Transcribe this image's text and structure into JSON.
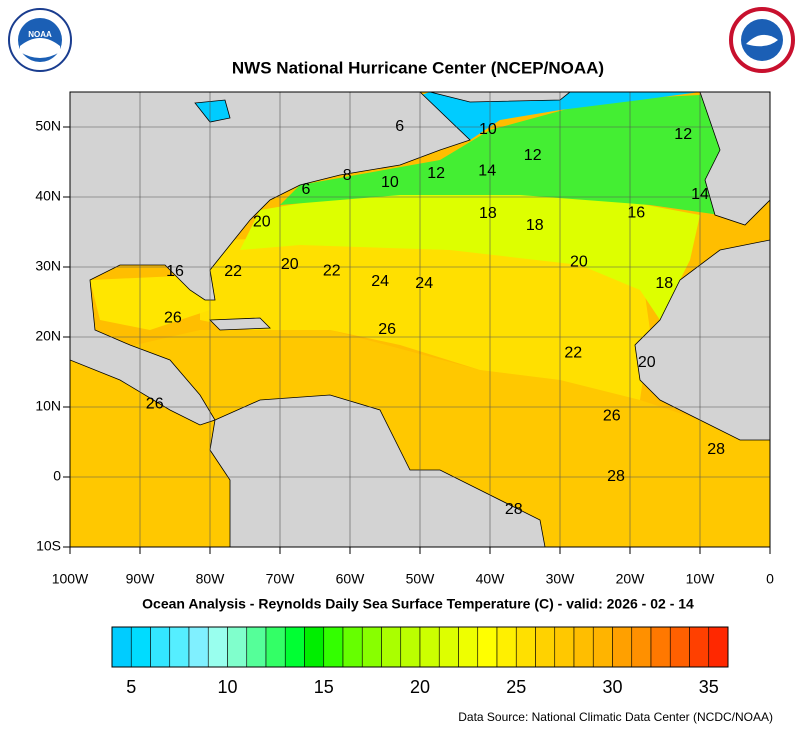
{
  "title": "NWS National Hurricane Center (NCEP/NOAA)",
  "subtitle": "Ocean Analysis - Reynolds Daily Sea Surface Temperature (C) - valid: 2026 - 02 - 14",
  "source": "Data Source: National Climatic Data Center (NCDC/NOAA)",
  "logo_left": "NOAA",
  "map": {
    "xlim": [
      -100,
      0
    ],
    "ylim": [
      -10,
      55
    ],
    "xticks": [
      {
        "value": -100,
        "label": "100W"
      },
      {
        "value": -90,
        "label": "90W"
      },
      {
        "value": -80,
        "label": "80W"
      },
      {
        "value": -70,
        "label": "70W"
      },
      {
        "value": -60,
        "label": "60W"
      },
      {
        "value": -50,
        "label": "50W"
      },
      {
        "value": -40,
        "label": "40W"
      },
      {
        "value": -30,
        "label": "30W"
      },
      {
        "value": -20,
        "label": "20W"
      },
      {
        "value": -10,
        "label": "10W"
      },
      0
    ],
    "yticks": [
      {
        "value": -10,
        "label": "10S"
      },
      0,
      {
        "value": 10,
        "label": "10N"
      },
      {
        "value": 20,
        "label": "20N"
      },
      {
        "value": 30,
        "label": "30N"
      },
      {
        "value": 40,
        "label": "40N"
      },
      {
        "value": 50,
        "label": "50N"
      }
    ],
    "grid": true,
    "contour_labels": [
      {
        "text": 6,
        "lon": -52.9,
        "lat": 50
      },
      {
        "text": 10,
        "lon": -40.3,
        "lat": 49.6
      },
      {
        "text": 12,
        "lon": -12.4,
        "lat": 48.9
      },
      {
        "text": 12,
        "lon": -33.9,
        "lat": 45.9
      },
      {
        "text": 14,
        "lon": -40.4,
        "lat": 43.7
      },
      {
        "text": 12,
        "lon": -47.7,
        "lat": 43.3
      },
      {
        "text": 10,
        "lon": -54.3,
        "lat": 42
      },
      {
        "text": 8,
        "lon": -60.4,
        "lat": 43
      },
      {
        "text": 6,
        "lon": -66.3,
        "lat": 41
      },
      {
        "text": 14,
        "lon": -10,
        "lat": 40.3
      },
      {
        "text": 16,
        "lon": -19.1,
        "lat": 37.7
      },
      {
        "text": 18,
        "lon": -40.3,
        "lat": 37.6
      },
      {
        "text": 18,
        "lon": -33.6,
        "lat": 35.9
      },
      {
        "text": 20,
        "lon": -72.6,
        "lat": 36.4
      },
      {
        "text": 20,
        "lon": -27.3,
        "lat": 30.7
      },
      {
        "text": 20,
        "lon": -68.6,
        "lat": 30.3
      },
      {
        "text": 22,
        "lon": -76.7,
        "lat": 29.3
      },
      {
        "text": 22,
        "lon": -62.6,
        "lat": 29.4
      },
      {
        "text": 24,
        "lon": -55.7,
        "lat": 27.9
      },
      {
        "text": 24,
        "lon": -49.4,
        "lat": 27.6
      },
      {
        "text": 16,
        "lon": -85,
        "lat": 29.3
      },
      {
        "text": 18,
        "lon": -15.1,
        "lat": 27.6
      },
      {
        "text": 26,
        "lon": -85.3,
        "lat": 22.7
      },
      {
        "text": 26,
        "lon": -54.7,
        "lat": 21
      },
      {
        "text": 22,
        "lon": -28.1,
        "lat": 17.7
      },
      {
        "text": 20,
        "lon": -17.6,
        "lat": 16.3
      },
      {
        "text": 26,
        "lon": -87.9,
        "lat": 10.4
      },
      {
        "text": 26,
        "lon": -22.6,
        "lat": 8.7
      },
      {
        "text": 28,
        "lon": -7.7,
        "lat": 3.9
      },
      {
        "text": 28,
        "lon": -22,
        "lat": 0
      },
      {
        "text": 28,
        "lon": -36.6,
        "lat": -4.7
      }
    ]
  },
  "colorbar": {
    "range": [
      4,
      36
    ],
    "ticks": [
      5,
      10,
      15,
      20,
      25,
      30,
      35
    ],
    "colors": [
      "#00ccff",
      "#00dcff",
      "#33e6ff",
      "#55eeff",
      "#80f0ff",
      "#99ffee",
      "#80ffcc",
      "#55ff99",
      "#33ff66",
      "#00ff33",
      "#00ee00",
      "#33ff00",
      "#66ff00",
      "#88ff00",
      "#aaff00",
      "#bbff00",
      "#ccff00",
      "#ddff00",
      "#eeff00",
      "#ffff00",
      "#fff000",
      "#ffe000",
      "#ffd200",
      "#ffc800",
      "#ffbe00",
      "#ffb400",
      "#ffa000",
      "#ff9000",
      "#ff7800",
      "#ff6000",
      "#ff4000",
      "#ff2800"
    ]
  }
}
